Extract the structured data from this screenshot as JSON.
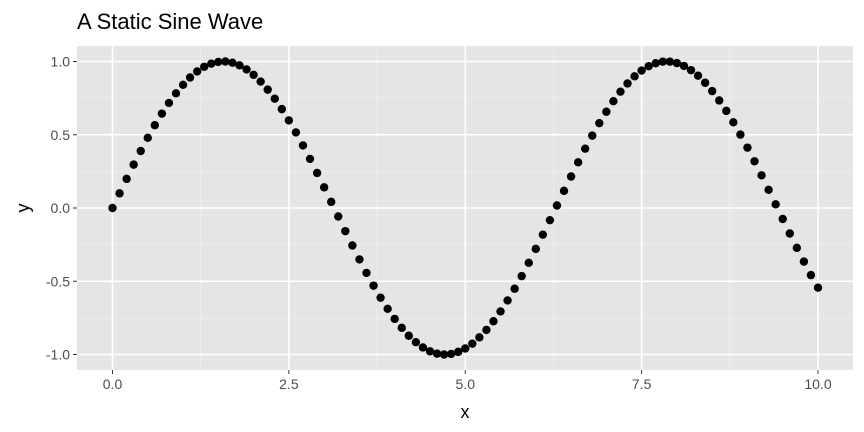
{
  "chart_data": {
    "type": "scatter",
    "title": "A Static Sine Wave",
    "xlabel": "x",
    "ylabel": "y",
    "xlim": [
      0,
      10
    ],
    "ylim": [
      -1,
      1
    ],
    "x_ticks": [
      {
        "value": 0,
        "label": "0.0"
      },
      {
        "value": 2.5,
        "label": "2.5"
      },
      {
        "value": 5,
        "label": "5.0"
      },
      {
        "value": 7.5,
        "label": "7.5"
      },
      {
        "value": 10,
        "label": "10.0"
      }
    ],
    "y_ticks": [
      {
        "value": -1,
        "label": "-1.0"
      },
      {
        "value": -0.5,
        "label": "-0.5"
      },
      {
        "value": 0,
        "label": "0.0"
      },
      {
        "value": 0.5,
        "label": "0.5"
      },
      {
        "value": 1,
        "label": "1.0"
      }
    ],
    "grid": true,
    "colors": {
      "panel_background": "#e5e5e5",
      "grid_major": "#ffffff",
      "grid_minor": "#f0f0f0",
      "points": "#000000"
    },
    "series": [
      {
        "x": [
          0.0,
          0.1,
          0.2,
          0.3,
          0.4,
          0.5,
          0.6,
          0.7,
          0.8,
          0.9,
          1.0,
          1.1,
          1.2,
          1.3,
          1.4,
          1.5,
          1.6,
          1.7,
          1.8,
          1.9,
          2.0,
          2.1,
          2.2,
          2.3,
          2.4,
          2.5,
          2.6,
          2.7,
          2.8,
          2.9,
          3.0,
          3.1,
          3.2,
          3.3,
          3.4,
          3.5,
          3.6,
          3.7,
          3.8,
          3.9,
          4.0,
          4.1,
          4.2,
          4.3,
          4.4,
          4.5,
          4.6,
          4.7,
          4.8,
          4.9,
          5.0,
          5.1,
          5.2,
          5.3,
          5.4,
          5.5,
          5.6,
          5.7,
          5.8,
          5.9,
          6.0,
          6.1,
          6.2,
          6.3,
          6.4,
          6.5,
          6.6,
          6.7,
          6.8,
          6.9,
          7.0,
          7.1,
          7.2,
          7.3,
          7.4,
          7.5,
          7.6,
          7.7,
          7.8,
          7.9,
          8.0,
          8.1,
          8.2,
          8.3,
          8.4,
          8.5,
          8.6,
          8.7,
          8.8,
          8.9,
          9.0,
          9.1,
          9.2,
          9.3,
          9.4,
          9.5,
          9.6,
          9.7,
          9.8,
          9.9,
          10.0
        ],
        "y": [
          0.0,
          0.1,
          0.199,
          0.296,
          0.389,
          0.479,
          0.565,
          0.644,
          0.717,
          0.783,
          0.841,
          0.891,
          0.932,
          0.964,
          0.985,
          0.997,
          1.0,
          0.992,
          0.974,
          0.946,
          0.909,
          0.863,
          0.808,
          0.746,
          0.675,
          0.598,
          0.516,
          0.427,
          0.335,
          0.239,
          0.141,
          0.042,
          -0.058,
          -0.158,
          -0.256,
          -0.351,
          -0.443,
          -0.53,
          -0.612,
          -0.688,
          -0.757,
          -0.818,
          -0.872,
          -0.916,
          -0.952,
          -0.978,
          -0.994,
          -1.0,
          -0.996,
          -0.982,
          -0.959,
          -0.926,
          -0.883,
          -0.832,
          -0.773,
          -0.706,
          -0.631,
          -0.551,
          -0.465,
          -0.374,
          -0.279,
          -0.182,
          -0.083,
          0.017,
          0.117,
          0.215,
          0.312,
          0.405,
          0.494,
          0.579,
          0.657,
          0.729,
          0.794,
          0.85,
          0.899,
          0.938,
          0.968,
          0.988,
          0.999,
          0.999,
          0.989,
          0.97,
          0.941,
          0.903,
          0.855,
          0.798,
          0.734,
          0.663,
          0.585,
          0.501,
          0.412,
          0.319,
          0.223,
          0.124,
          0.025,
          -0.075,
          -0.174,
          -0.272,
          -0.366,
          -0.458,
          -0.544
        ]
      }
    ]
  }
}
